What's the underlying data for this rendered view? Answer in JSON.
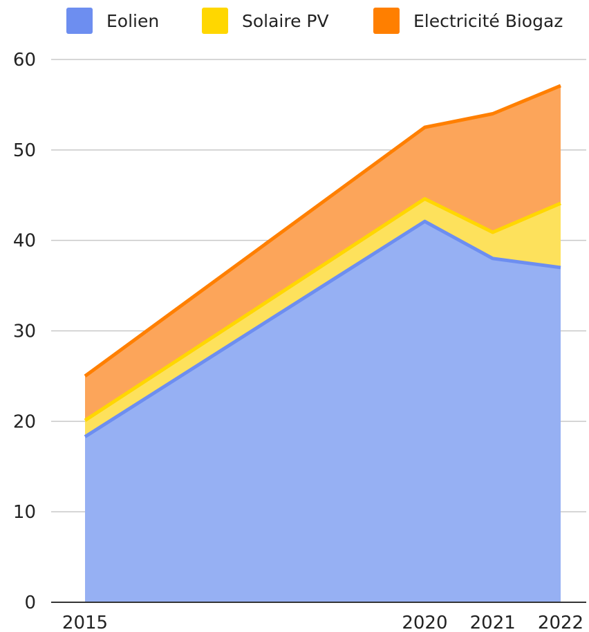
{
  "colors": {
    "background": "#ffffff",
    "gridline": "#c8c8c8",
    "axis_line": "#333333",
    "text": "#222222"
  },
  "chart_data": {
    "type": "area",
    "stacked": true,
    "x": [
      2015,
      2020,
      2021,
      2022
    ],
    "x_tick_labels": [
      "2015",
      "2020",
      "2021",
      "2022"
    ],
    "series": [
      {
        "name": "Eolien",
        "values": [
          18.3,
          42.1,
          38.0,
          37.0
        ],
        "line_color": "#6d8ef0",
        "fill_color": "#96b0f3"
      },
      {
        "name": "Solaire PV",
        "values": [
          1.8,
          2.5,
          2.9,
          7.1
        ],
        "line_color": "#ffd700",
        "fill_color": "#fde15c"
      },
      {
        "name": "Electricité Biogaz",
        "values": [
          4.9,
          7.9,
          13.1,
          13.0
        ],
        "line_color": "#ff7f00",
        "fill_color": "#fca55a"
      }
    ],
    "ylim": [
      0,
      60
    ],
    "y_ticks": [
      0,
      10,
      20,
      30,
      40,
      50,
      60
    ],
    "grid": true,
    "legend_position": "top"
  }
}
